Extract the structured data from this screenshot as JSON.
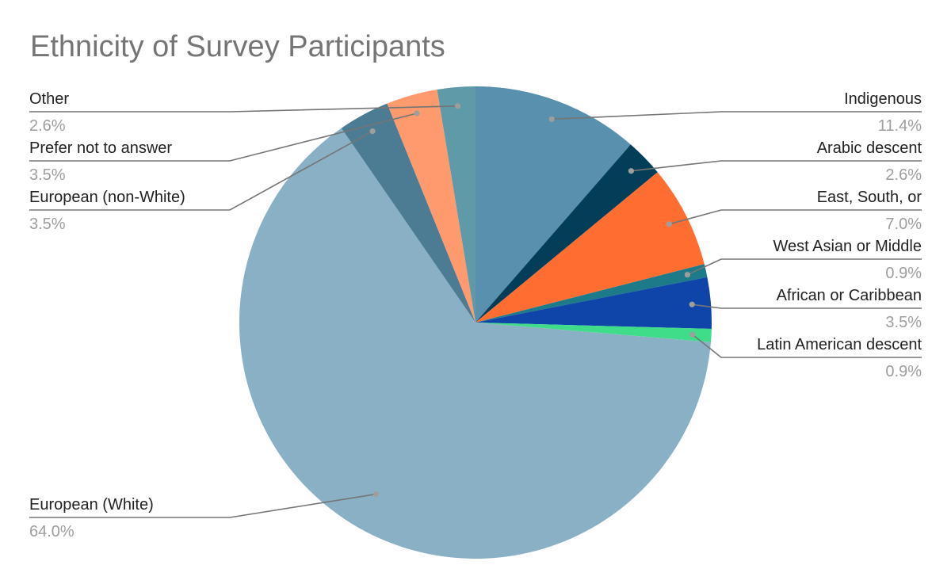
{
  "chart_data": {
    "type": "pie",
    "title": "Ethnicity of Survey Participants",
    "slices": [
      {
        "label": "Indigenous",
        "value": 11.4,
        "display": "11.4%",
        "color": "#5890ad"
      },
      {
        "label": "Arabic descent",
        "value": 2.6,
        "display": "2.6%",
        "color": "#023e58"
      },
      {
        "label": "East, South, or",
        "value": 7.0,
        "display": "7.0%",
        "color": "#ff6d31"
      },
      {
        "label": "West Asian or Middle",
        "value": 0.9,
        "display": "0.9%",
        "color": "#1c7a89"
      },
      {
        "label": "African or Caribbean",
        "value": 3.5,
        "display": "3.5%",
        "color": "#0f45a8"
      },
      {
        "label": "Latin American descent",
        "value": 0.9,
        "display": "0.9%",
        "color": "#3fdd89"
      },
      {
        "label": "European (White)",
        "value": 64.0,
        "display": "64.0%",
        "color": "#8ab0c5"
      },
      {
        "label": "European (non-White)",
        "value": 3.5,
        "display": "3.5%",
        "color": "#4b7c93"
      },
      {
        "label": "Prefer not to answer",
        "value": 3.5,
        "display": "3.5%",
        "color": "#ff9a6e"
      },
      {
        "label": "Other",
        "value": 2.6,
        "display": "2.6%",
        "color": "#5e9aa8"
      }
    ],
    "start_angle": "12 o'clock",
    "direction": "clockwise",
    "legend": "none (callout labels)"
  }
}
